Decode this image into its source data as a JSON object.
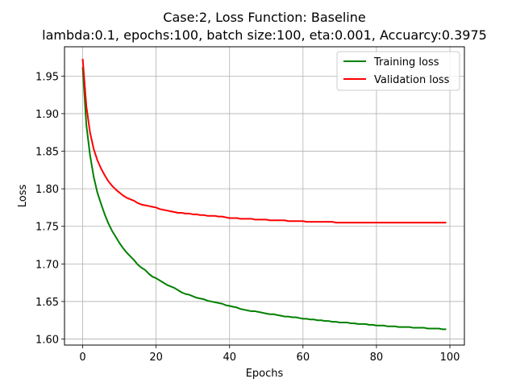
{
  "chart_data": {
    "type": "line",
    "title_lines": [
      "Case:2, Loss Function: Baseline",
      "lambda:0.1, epochs:100, batch size:100, eta:0.001, Accuarcy:0.3975"
    ],
    "xlabel": "Epochs",
    "ylabel": "Loss",
    "xlim": [
      -4.95,
      103.95
    ],
    "ylim": [
      1.592,
      1.989
    ],
    "xticks": [
      0,
      20,
      40,
      60,
      80,
      100
    ],
    "yticks": [
      1.6,
      1.65,
      1.7,
      1.75,
      1.8,
      1.85,
      1.9,
      1.95
    ],
    "ytick_labels": [
      "1.60",
      "1.65",
      "1.70",
      "1.75",
      "1.80",
      "1.85",
      "1.90",
      "1.95"
    ],
    "grid": true,
    "legend_position": "top-right",
    "series": [
      {
        "name": "Training loss",
        "color": "#008000",
        "x": [
          0,
          1,
          2,
          3,
          4,
          5,
          6,
          7,
          8,
          9,
          10,
          11,
          12,
          13,
          14,
          15,
          16,
          17,
          18,
          19,
          20,
          21,
          22,
          23,
          24,
          25,
          26,
          27,
          28,
          29,
          30,
          31,
          32,
          33,
          34,
          35,
          36,
          37,
          38,
          39,
          40,
          41,
          42,
          43,
          44,
          45,
          46,
          47,
          48,
          49,
          50,
          51,
          52,
          53,
          54,
          55,
          56,
          57,
          58,
          59,
          60,
          61,
          62,
          63,
          64,
          65,
          66,
          67,
          68,
          69,
          70,
          71,
          72,
          73,
          74,
          75,
          76,
          77,
          78,
          79,
          80,
          81,
          82,
          83,
          84,
          85,
          86,
          87,
          88,
          89,
          90,
          91,
          92,
          93,
          94,
          95,
          96,
          97,
          98,
          99
        ],
        "y": [
          1.962,
          1.885,
          1.845,
          1.816,
          1.795,
          1.78,
          1.766,
          1.754,
          1.744,
          1.736,
          1.728,
          1.721,
          1.715,
          1.71,
          1.705,
          1.699,
          1.695,
          1.692,
          1.687,
          1.683,
          1.681,
          1.678,
          1.675,
          1.672,
          1.67,
          1.668,
          1.665,
          1.662,
          1.66,
          1.659,
          1.657,
          1.655,
          1.654,
          1.653,
          1.651,
          1.65,
          1.649,
          1.648,
          1.647,
          1.645,
          1.644,
          1.643,
          1.642,
          1.64,
          1.639,
          1.638,
          1.637,
          1.637,
          1.636,
          1.635,
          1.634,
          1.633,
          1.633,
          1.632,
          1.631,
          1.63,
          1.63,
          1.629,
          1.629,
          1.628,
          1.627,
          1.627,
          1.626,
          1.626,
          1.625,
          1.625,
          1.624,
          1.624,
          1.623,
          1.623,
          1.622,
          1.622,
          1.622,
          1.621,
          1.621,
          1.62,
          1.62,
          1.62,
          1.619,
          1.619,
          1.618,
          1.618,
          1.618,
          1.617,
          1.617,
          1.617,
          1.616,
          1.616,
          1.616,
          1.616,
          1.615,
          1.615,
          1.615,
          1.615,
          1.614,
          1.614,
          1.614,
          1.614,
          1.613,
          1.613
        ]
      },
      {
        "name": "Validation loss",
        "color": "#ff0000",
        "x": [
          0,
          1,
          2,
          3,
          4,
          5,
          6,
          7,
          8,
          9,
          10,
          11,
          12,
          13,
          14,
          15,
          16,
          17,
          18,
          19,
          20,
          21,
          22,
          23,
          24,
          25,
          26,
          27,
          28,
          29,
          30,
          31,
          32,
          33,
          34,
          35,
          36,
          37,
          38,
          39,
          40,
          41,
          42,
          43,
          44,
          45,
          46,
          47,
          48,
          49,
          50,
          51,
          52,
          53,
          54,
          55,
          56,
          57,
          58,
          59,
          60,
          61,
          62,
          63,
          64,
          65,
          66,
          67,
          68,
          69,
          70,
          71,
          72,
          73,
          74,
          75,
          76,
          77,
          78,
          79,
          80,
          81,
          82,
          83,
          84,
          85,
          86,
          87,
          88,
          89,
          90,
          91,
          92,
          93,
          94,
          95,
          96,
          97,
          98,
          99
        ],
        "y": [
          1.973,
          1.91,
          1.875,
          1.853,
          1.838,
          1.827,
          1.818,
          1.81,
          1.804,
          1.799,
          1.795,
          1.791,
          1.788,
          1.786,
          1.784,
          1.781,
          1.779,
          1.778,
          1.777,
          1.776,
          1.775,
          1.773,
          1.772,
          1.771,
          1.77,
          1.769,
          1.768,
          1.768,
          1.767,
          1.767,
          1.766,
          1.766,
          1.765,
          1.765,
          1.764,
          1.764,
          1.764,
          1.763,
          1.763,
          1.762,
          1.761,
          1.761,
          1.761,
          1.76,
          1.76,
          1.76,
          1.76,
          1.759,
          1.759,
          1.759,
          1.759,
          1.758,
          1.758,
          1.758,
          1.758,
          1.758,
          1.757,
          1.757,
          1.757,
          1.757,
          1.757,
          1.756,
          1.756,
          1.756,
          1.756,
          1.756,
          1.756,
          1.756,
          1.756,
          1.755,
          1.755,
          1.755,
          1.755,
          1.755,
          1.755,
          1.755,
          1.755,
          1.755,
          1.755,
          1.755,
          1.755,
          1.755,
          1.755,
          1.755,
          1.755,
          1.755,
          1.755,
          1.755,
          1.755,
          1.755,
          1.755,
          1.755,
          1.755,
          1.755,
          1.755,
          1.755,
          1.755,
          1.755,
          1.755,
          1.755
        ]
      }
    ]
  }
}
